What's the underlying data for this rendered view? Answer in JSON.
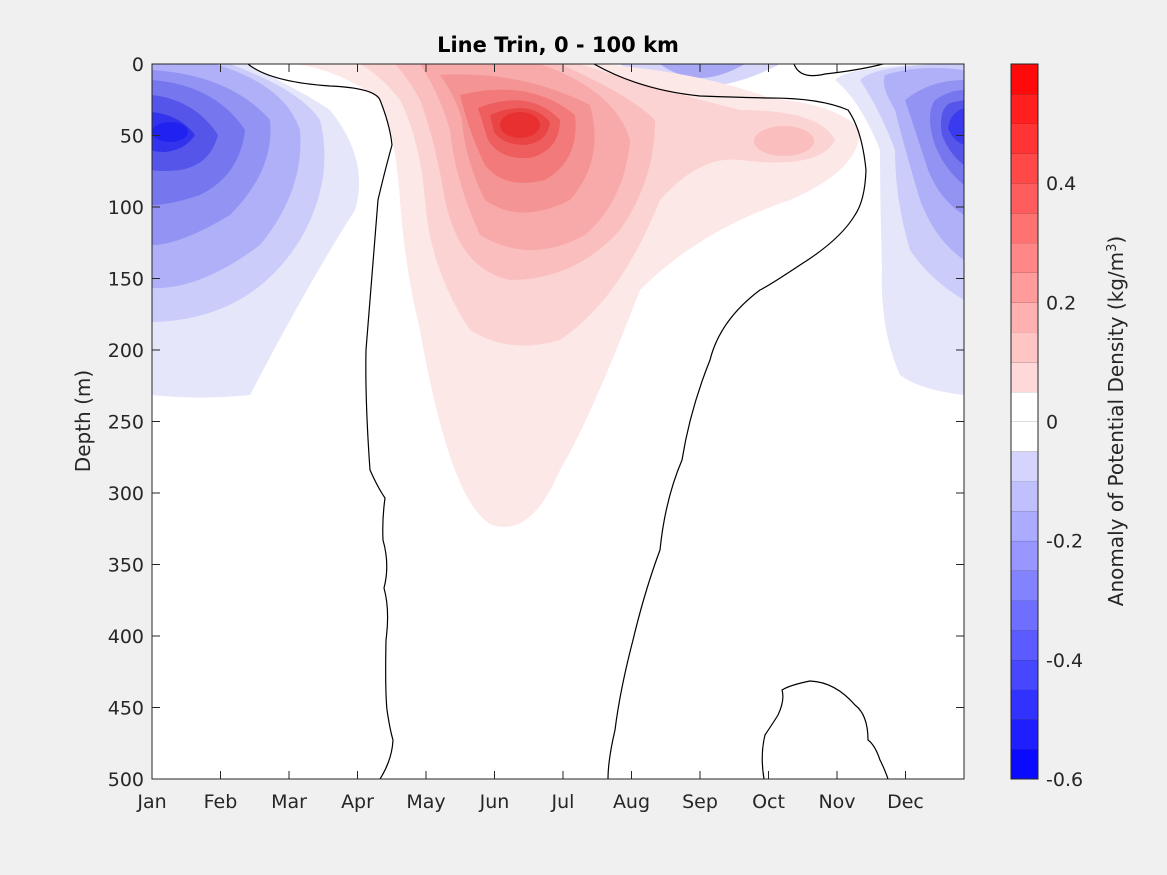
{
  "chart_data": {
    "type": "contour",
    "title": "Line Trin, 0 - 100 km",
    "xlabel": "",
    "ylabel": "Depth (m)",
    "x_ticks": [
      "Jan",
      "Feb",
      "Mar",
      "Apr",
      "May",
      "Jun",
      "Jul",
      "Aug",
      "Sep",
      "Oct",
      "Nov",
      "Dec"
    ],
    "y_ticks": [
      "0",
      "50",
      "100",
      "150",
      "200",
      "250",
      "300",
      "350",
      "400",
      "450",
      "500"
    ],
    "ylim": [
      0,
      500
    ],
    "y_reversed": true,
    "colorbar": {
      "label": "Anomaly of Potential Density (kg/m",
      "label_sup": "3",
      "label_end": ")",
      "range": [
        -0.6,
        0.6
      ],
      "step": 0.05,
      "tick_labels": [
        "-0.6",
        "-0.4",
        "-0.2",
        "0",
        "0.2",
        "0.4"
      ],
      "tick_values": [
        -0.6,
        -0.4,
        -0.2,
        0,
        0.2,
        0.4
      ],
      "positive_color": "#ff0000",
      "negative_color": "#0000ff",
      "neutral_color": "#ffffff"
    },
    "features": [
      {
        "sign": "negative",
        "peak_anomaly": -0.55,
        "month": "Jan",
        "depth_m": 50
      },
      {
        "sign": "positive",
        "peak_anomaly": 0.4,
        "month": "Jun",
        "depth_m": 40
      },
      {
        "sign": "positive",
        "peak_anomaly": 0.15,
        "month": "Oct",
        "depth_m": 55
      },
      {
        "sign": "negative",
        "peak_anomaly": -0.5,
        "month": "Dec",
        "depth_m": 50
      }
    ]
  }
}
